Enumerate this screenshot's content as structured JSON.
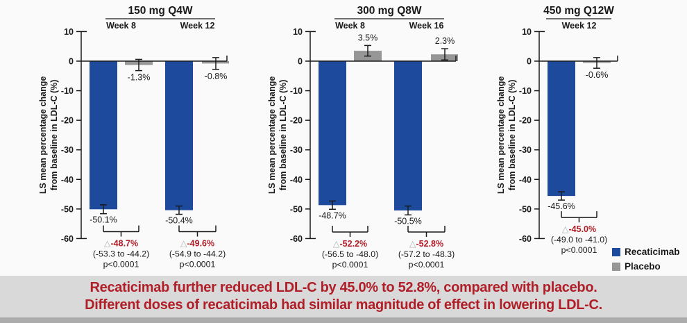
{
  "colors": {
    "recaticimab_blue": "#1E4A9E",
    "placebo_gray": "#969696",
    "accent_red": "#B01E28",
    "axis_black": "#1A1A1A",
    "triangle_gray": "#B0B0B0",
    "page_bg": "#FAFAFA",
    "banner_bg": "#D9D9D9",
    "banner_strip": "#ABABAB"
  },
  "delta_symbol": "△",
  "legend": {
    "items": [
      {
        "key": "recaticimab_blue",
        "label": "Recaticimab"
      },
      {
        "key": "placebo_gray",
        "label": "Placebo"
      }
    ]
  },
  "banner": {
    "line1": "Recaticimab further reduced LDL-C by 45.0% to 52.8%, compared with placebo.",
    "line2": "Different doses of recaticimab had similar magnitude of effect in lowering LDL-C."
  },
  "chart_data": [
    {
      "type": "bar",
      "title": "150 mg Q4W",
      "ylabel": "LS mean percentage change from baseline in LDL-C (%)",
      "ylabel_lines": [
        "LS mean percentage change",
        "from baseline in LDL-C (%)"
      ],
      "ylim": [
        -60,
        10
      ],
      "yticks": [
        10,
        0,
        -10,
        -20,
        -30,
        -40,
        -50,
        -60
      ],
      "series_names": [
        "Recaticimab",
        "Placebo"
      ],
      "groups": [
        {
          "label": "Week 8",
          "recaticimab": -50.1,
          "recaticimab_err": 1.5,
          "placebo": -1.3,
          "placebo_err": 1.9,
          "diff": "-48.7%",
          "ci": "(-53.3 to -44.2)",
          "p": "p<0.0001"
        },
        {
          "label": "Week 12",
          "recaticimab": -50.4,
          "recaticimab_err": 1.4,
          "placebo": -0.8,
          "placebo_err": 2.0,
          "diff": "-49.6%",
          "ci": "(-54.9 to -44.2)",
          "p": "p<0.0001"
        }
      ]
    },
    {
      "type": "bar",
      "title": "300 mg Q8W",
      "ylabel": "LS mean percentage change from baseline in LDL-C (%)",
      "ylabel_lines": [
        "LS mean percentage change",
        "from baseline in LDL-C (%)"
      ],
      "ylim": [
        -60,
        10
      ],
      "yticks": [
        10,
        0,
        -10,
        -20,
        -30,
        -40,
        -50,
        -60
      ],
      "series_names": [
        "Recaticimab",
        "Placebo"
      ],
      "groups": [
        {
          "label": "Week 8",
          "recaticimab": -48.7,
          "recaticimab_err": 1.4,
          "placebo": 3.5,
          "placebo_err": 1.8,
          "diff": "-52.2%",
          "ci": "(-56.5 to -48.0)",
          "p": "p<0.0001"
        },
        {
          "label": "Week 16",
          "recaticimab": -50.5,
          "recaticimab_err": 1.5,
          "placebo": 2.3,
          "placebo_err": 1.9,
          "diff": "-52.8%",
          "ci": "(-57.2 to -48.3)",
          "p": "p<0.0001"
        }
      ]
    },
    {
      "type": "bar",
      "title": "450 mg Q12W",
      "ylabel": "LS mean percentage change from baseline in LDL-C (%)",
      "ylabel_lines": [
        "LS mean percentage change",
        "from baseline in LDL-C (%)"
      ],
      "ylim": [
        -60,
        10
      ],
      "yticks": [
        10,
        0,
        -10,
        -20,
        -30,
        -40,
        -50,
        -60
      ],
      "series_names": [
        "Recaticimab",
        "Placebo"
      ],
      "groups": [
        {
          "label": "Week 12",
          "recaticimab": -45.6,
          "recaticimab_err": 1.4,
          "placebo": -0.6,
          "placebo_err": 1.8,
          "diff": "-45.0%",
          "ci": "(-49.0 to -41.0)",
          "p": "p<0.0001"
        }
      ]
    }
  ]
}
